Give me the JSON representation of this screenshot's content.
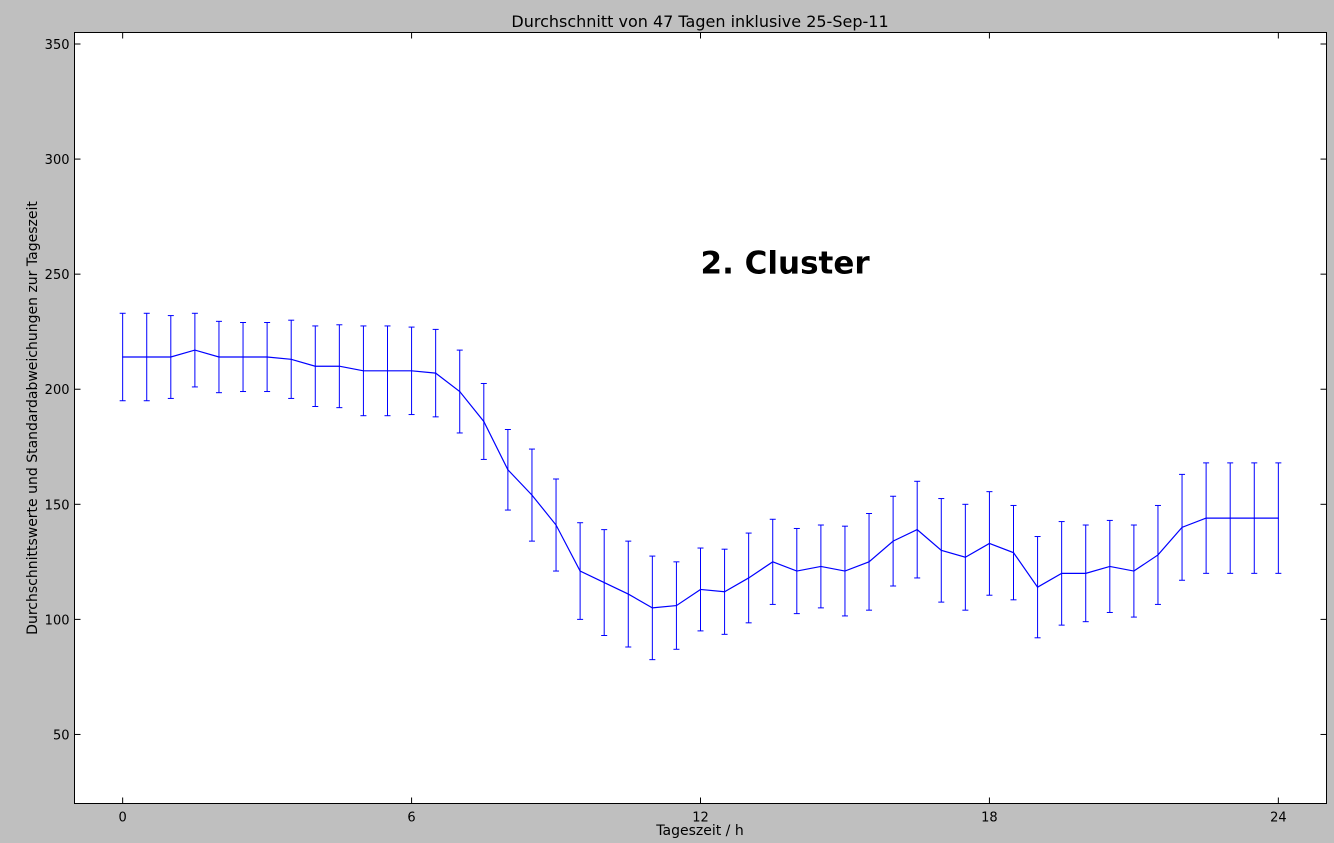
{
  "chart_data": {
    "type": "line",
    "title": "Durchschnitt von 47 Tagen inklusive 25-Sep-11",
    "xlabel": "Tageszeit / h",
    "ylabel": "Durchschnittswerte und Standardabweichungen zur Tageszeit",
    "xlim": [
      -1,
      25
    ],
    "ylim": [
      20,
      355
    ],
    "xticks": [
      0,
      6,
      12,
      18,
      24
    ],
    "xtick_labels": [
      "0",
      "6",
      "12",
      "18",
      "24"
    ],
    "yticks": [
      50,
      100,
      150,
      200,
      250,
      300,
      350
    ],
    "ytick_labels": [
      "50",
      "100",
      "150",
      "200",
      "250",
      "300",
      "350"
    ],
    "grid": false,
    "annotation": {
      "text": "2. Cluster",
      "x": 12,
      "y": 255
    },
    "series": [
      {
        "color": "#0000ff",
        "x": [
          0,
          0.5,
          1,
          1.5,
          2,
          2.5,
          3,
          3.5,
          4,
          4.5,
          5,
          5.5,
          6,
          6.5,
          7,
          7.5,
          8,
          8.5,
          9,
          9.5,
          10,
          10.5,
          11,
          11.5,
          12,
          12.5,
          13,
          13.5,
          14,
          14.5,
          15,
          15.5,
          16,
          16.5,
          17,
          17.5,
          18,
          18.5,
          19,
          19.5,
          20,
          20.5,
          21,
          21.5,
          22,
          22.5,
          23,
          23.5,
          24
        ],
        "y": [
          214,
          214,
          214,
          217,
          214,
          214,
          214,
          213,
          210,
          210,
          208,
          208,
          208,
          207,
          199,
          186,
          165,
          154,
          141,
          121,
          116,
          111,
          105,
          106,
          113,
          112,
          118,
          125,
          121,
          123,
          121,
          125,
          134,
          139,
          130,
          127,
          133,
          129,
          114,
          120,
          120,
          123,
          121,
          128,
          140,
          144,
          144,
          144,
          144
        ],
        "err": [
          19,
          19,
          18,
          16,
          15.5,
          15,
          15,
          17,
          17.5,
          18,
          19.5,
          19.5,
          19,
          19,
          18,
          16.5,
          17.5,
          20,
          20,
          21,
          23,
          23,
          22.5,
          19,
          18,
          18.5,
          19.5,
          18.5,
          18.5,
          18,
          19.5,
          21,
          19.5,
          21,
          22.5,
          23,
          22.5,
          20.5,
          22,
          22.5,
          21,
          20,
          20,
          21.5,
          23,
          24,
          24,
          24,
          24
        ]
      }
    ]
  }
}
